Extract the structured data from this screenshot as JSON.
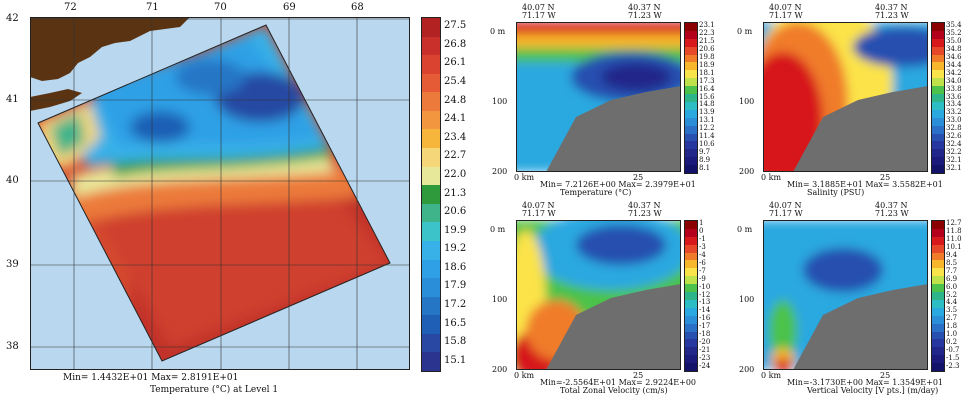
{
  "main_map": {
    "lon_ticks": [
      "72",
      "71",
      "70",
      "69",
      "68"
    ],
    "lat_ticks": [
      "42",
      "41",
      "40",
      "39",
      "38"
    ],
    "colorbar": [
      "27.5",
      "26.8",
      "26.1",
      "25.4",
      "24.8",
      "24.1",
      "23.4",
      "22.7",
      "22.0",
      "21.3",
      "20.6",
      "19.9",
      "19.2",
      "18.6",
      "17.9",
      "17.2",
      "16.5",
      "15.8",
      "15.1"
    ],
    "colorbar_colors": [
      "#b22222",
      "#c9302c",
      "#d9432f",
      "#e55b35",
      "#ec7a3a",
      "#f2963f",
      "#f6b63b",
      "#f5d77a",
      "#e8e89a",
      "#2e9a3c",
      "#3fb48a",
      "#3cc2c9",
      "#37b1e8",
      "#2fa0e6",
      "#2b8ed8",
      "#2676c6",
      "#1f5fb5",
      "#2848a3",
      "#2b3590"
    ],
    "minmax": "Min= 1.4432E+01    Max= 2.8191E+01",
    "caption": "Temperature (°C) at Level 1"
  },
  "sections": [
    {
      "name": "temperature",
      "left_top": "40.07 N",
      "left_bot": "71.17 W",
      "right_top": "40.37 N",
      "right_bot": "71.23 W",
      "depths": [
        "0 m",
        "100",
        "200"
      ],
      "xlabels": [
        "0 km",
        "25"
      ],
      "minmax": "Min= 7.2126E+00   Max= 2.3979E+01",
      "caption": "Temperature (°C)",
      "colorbar": [
        "23.1",
        "22.3",
        "21.5",
        "20.6",
        "19.8",
        "18.9",
        "18.1",
        "17.3",
        "16.4",
        "15.6",
        "14.8",
        "13.9",
        "13.1",
        "12.2",
        "11.4",
        "10.6",
        "9.7",
        "8.9",
        "8.1"
      ]
    },
    {
      "name": "salinity",
      "left_top": "40.07 N",
      "left_bot": "71.17 W",
      "right_top": "40.37 N",
      "right_bot": "71.23 W",
      "depths": [
        "0 m",
        "100",
        "200"
      ],
      "xlabels": [
        "0 km",
        "25"
      ],
      "minmax": "Min= 3.1885E+01   Max= 3.5582E+01",
      "caption": "Salinity (PSU)",
      "colorbar": [
        "35.4",
        "35.2",
        "35.0",
        "34.8",
        "34.6",
        "34.4",
        "34.2",
        "34.0",
        "33.8",
        "33.6",
        "33.4",
        "33.2",
        "33.0",
        "32.8",
        "32.6",
        "32.4",
        "32.2",
        "32.1",
        "32.1"
      ]
    },
    {
      "name": "zonal-velocity",
      "left_top": "40.07 N",
      "left_bot": "71.17 W",
      "right_top": "40.37 N",
      "right_bot": "71.23 W",
      "depths": [
        "0 m",
        "100",
        "200"
      ],
      "xlabels": [
        "0 km",
        "25"
      ],
      "minmax": "Min=-2.5564E+01   Max= 2.9224E+00",
      "caption": "Total Zonal Velocity (cm/s)",
      "colorbar": [
        "1",
        "0",
        "-1",
        "-3",
        "-4",
        "-6",
        "-7",
        "-9",
        "-10",
        "-12",
        "-13",
        "-14",
        "-16",
        "-17",
        "-18",
        "-20",
        "-21",
        "-23",
        "-24"
      ]
    },
    {
      "name": "vertical-velocity",
      "left_top": "40.07 N",
      "left_bot": "71.17 W",
      "right_top": "40.37 N",
      "right_bot": "71.23 W",
      "depths": [
        "0 m",
        "100",
        "200"
      ],
      "xlabels": [
        "0 km",
        "25"
      ],
      "minmax": "Min=-3.1730E+00   Max= 1.3549E+01",
      "caption": "Vertical Velocity [V pts.] (m/day)",
      "colorbar": [
        "12.7",
        "11.8",
        "11.0",
        "10.1",
        "9.4",
        "8.5",
        "7.7",
        "6.9",
        "6.0",
        "5.2",
        "4.4",
        "3.5",
        "2.7",
        "1.8",
        "1.0",
        "0.2",
        "-0.7",
        "-1.5",
        "-2.3"
      ]
    }
  ]
}
